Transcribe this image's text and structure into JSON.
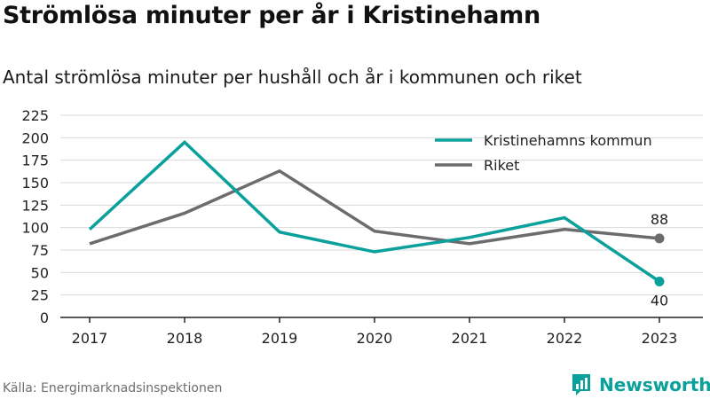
{
  "header": {
    "title": "Strömlösa minuter per år i Kristinehamn",
    "subtitle": "Antal strömlösa minuter per hushåll och år i kommunen och riket"
  },
  "footer": {
    "source": "Källa: Energimarknadsinspektionen",
    "brand": "Newsworthy",
    "brand_icon": "newsworthy-bar-chart-icon"
  },
  "colors": {
    "kommun": "#0aa09b",
    "riket": "#6c6c6f",
    "grid": "#d9d9d9",
    "axis": "#222222"
  },
  "chart_data": {
    "type": "line",
    "x": [
      "2017",
      "2018",
      "2019",
      "2020",
      "2021",
      "2022",
      "2023"
    ],
    "ylim": [
      0,
      225
    ],
    "yticks": [
      0,
      25,
      50,
      75,
      100,
      125,
      150,
      175,
      200,
      225
    ],
    "grid": true,
    "legend_position": "top-right",
    "series": [
      {
        "name": "Kristinehamns kommun",
        "values": [
          98,
          195,
          95,
          73,
          89,
          111,
          40
        ]
      },
      {
        "name": "Riket",
        "values": [
          82,
          116,
          163,
          96,
          82,
          98,
          88
        ]
      }
    ],
    "annotations": [
      {
        "series": "Riket",
        "x": "2023",
        "label": "88"
      },
      {
        "series": "Kristinehamns kommun",
        "x": "2023",
        "label": "40"
      }
    ]
  }
}
